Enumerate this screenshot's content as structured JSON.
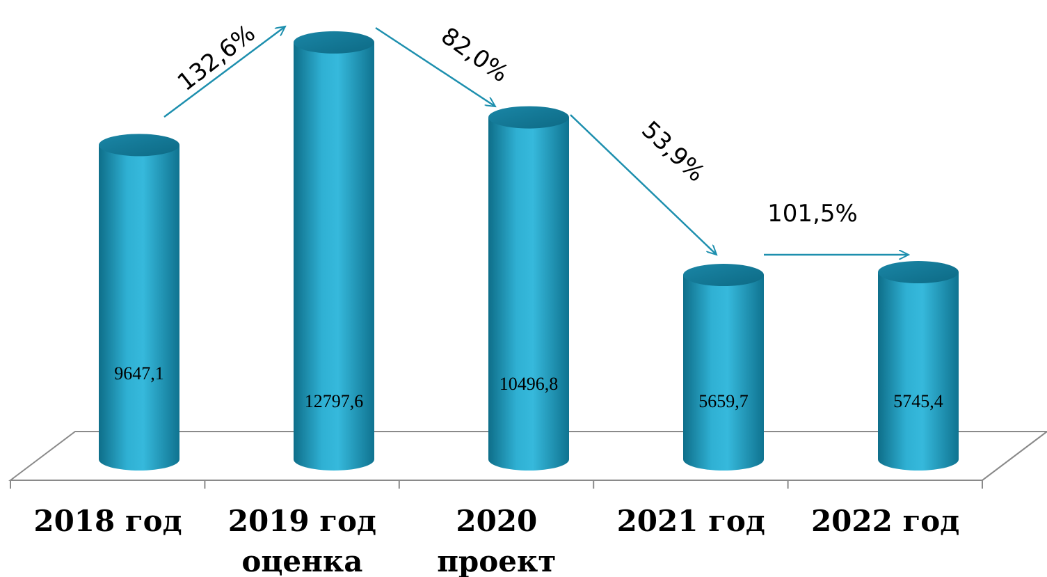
{
  "chart_data": {
    "type": "bar",
    "style": "3d-cylinder",
    "categories": [
      [
        "2018 год"
      ],
      [
        "2019 год",
        "оценка"
      ],
      [
        "2020",
        "проект"
      ],
      [
        "2021 год"
      ],
      [
        "2022 год"
      ]
    ],
    "values": [
      9647.1,
      12797.6,
      10496.8,
      5659.7,
      5745.4
    ],
    "value_labels": [
      "9647,1",
      "12797,6",
      "10496,8",
      "5659,7",
      "5745,4"
    ],
    "growth_labels": [
      "132,6%",
      "82,0%",
      "53,9%",
      "101,5%"
    ],
    "ylim": [
      0,
      13500
    ],
    "colors": {
      "bar": "#2aa6c9",
      "bar_dark": "#0f6f8a",
      "bar_top": "#1f8fb0",
      "arrow": "#1d8fae",
      "floor": "#7f7f7f"
    },
    "grid": false,
    "legend": "none"
  }
}
